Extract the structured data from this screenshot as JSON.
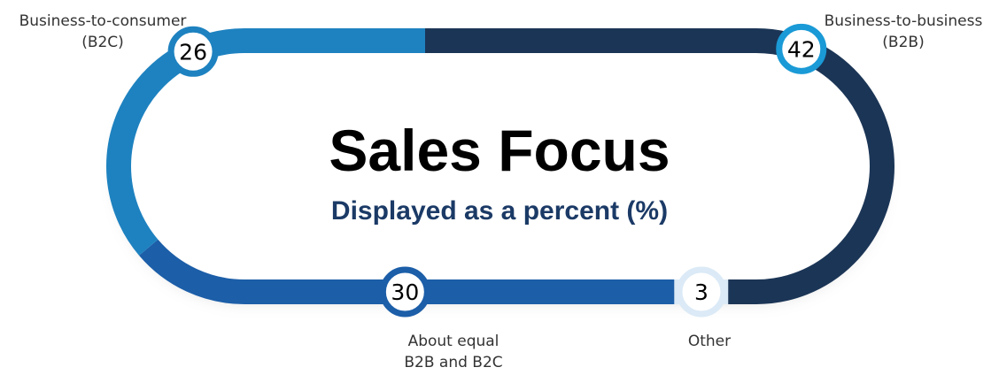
{
  "chart_data": {
    "type": "ring",
    "title": "Sales Focus",
    "subtitle": "Displayed as a percent (%)",
    "categories": [
      "Business-to-business (B2B)",
      "Other",
      "About equal B2B and B2C",
      "Business-to-consumer (B2C)"
    ],
    "values": [
      42,
      3,
      30,
      26
    ],
    "colors": [
      "#1b3556",
      "#dbeaf6",
      "#1c5ea8",
      "#1e82c0"
    ],
    "marker_colors": [
      "#1a9ad6",
      "#dbeaf6",
      "#1c5ea8",
      "#1e82c0"
    ]
  }
}
